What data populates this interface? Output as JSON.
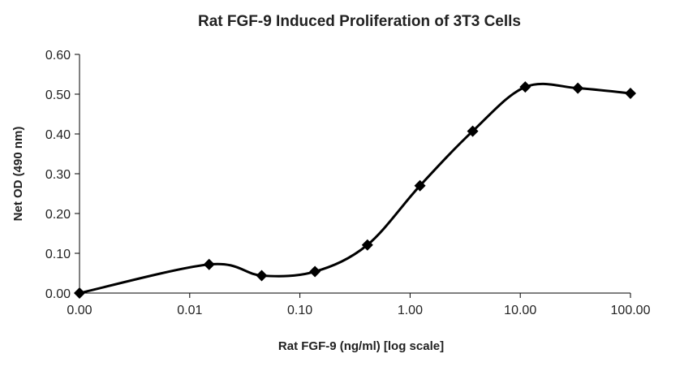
{
  "chart_data": {
    "type": "line",
    "title": "Rat FGF-9 Induced Proliferation of 3T3 Cells",
    "xlabel": "Rat FGF-9 (ng/ml) [log scale]",
    "ylabel": "Net OD (490 nm)",
    "x_scale": "log",
    "x_tick_labels": [
      "0.00",
      "0.01",
      "0.10",
      "1.00",
      "10.00",
      "100.00"
    ],
    "y_tick_labels": [
      "0.00",
      "0.10",
      "0.20",
      "0.30",
      "0.40",
      "0.50",
      "0.60"
    ],
    "ylim": [
      0,
      0.6
    ],
    "grid": false,
    "legend": "none",
    "marker": "diamond",
    "line_color": "#000000",
    "series": [
      {
        "x": [
          0.001,
          0.015,
          0.045,
          0.137,
          0.41,
          1.23,
          3.7,
          11.1,
          33.3,
          100
        ],
        "y": [
          0.0,
          0.072,
          0.044,
          0.054,
          0.121,
          0.27,
          0.407,
          0.518,
          0.515,
          0.502
        ]
      }
    ]
  }
}
